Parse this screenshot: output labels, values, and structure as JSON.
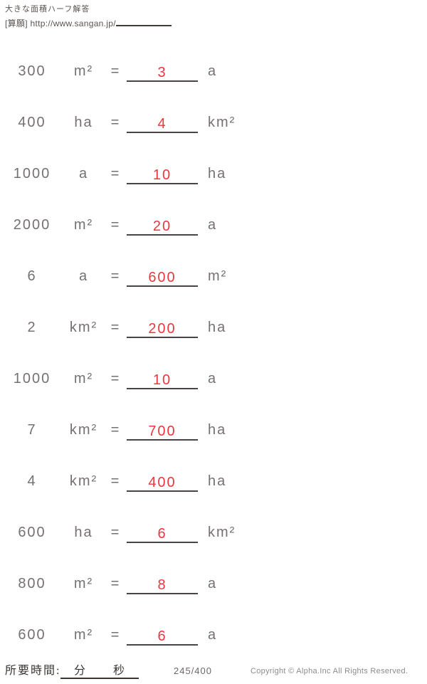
{
  "header": {
    "title": "大きな面積ハーフ解答",
    "source_label": "[算願] http://www.sangan.jp/"
  },
  "equals_sign": "=",
  "problems": [
    {
      "value": "300",
      "unit_from": "m²",
      "answer": "3",
      "unit_to": "a"
    },
    {
      "value": "400",
      "unit_from": "ha",
      "answer": "4",
      "unit_to": "km²"
    },
    {
      "value": "1000",
      "unit_from": "a",
      "answer": "10",
      "unit_to": "ha"
    },
    {
      "value": "2000",
      "unit_from": "m²",
      "answer": "20",
      "unit_to": "a"
    },
    {
      "value": "6",
      "unit_from": "a",
      "answer": "600",
      "unit_to": "m²"
    },
    {
      "value": "2",
      "unit_from": "km²",
      "answer": "200",
      "unit_to": "ha"
    },
    {
      "value": "1000",
      "unit_from": "m²",
      "answer": "10",
      "unit_to": "a"
    },
    {
      "value": "7",
      "unit_from": "km²",
      "answer": "700",
      "unit_to": "ha"
    },
    {
      "value": "4",
      "unit_from": "km²",
      "answer": "400",
      "unit_to": "ha"
    },
    {
      "value": "600",
      "unit_from": "ha",
      "answer": "6",
      "unit_to": "km²"
    },
    {
      "value": "800",
      "unit_from": "m²",
      "answer": "8",
      "unit_to": "a"
    },
    {
      "value": "600",
      "unit_from": "m²",
      "answer": "6",
      "unit_to": "a"
    }
  ],
  "footer": {
    "time_label": "所要時間:",
    "minutes_label": "分",
    "seconds_label": "秒",
    "page_counter": "245/400",
    "copyright": "Copyright © Alpha.Inc All Rights Reserved."
  },
  "colors": {
    "body_text": "#767170",
    "answer_red": "#e8383d",
    "underline": "#4a4545"
  }
}
